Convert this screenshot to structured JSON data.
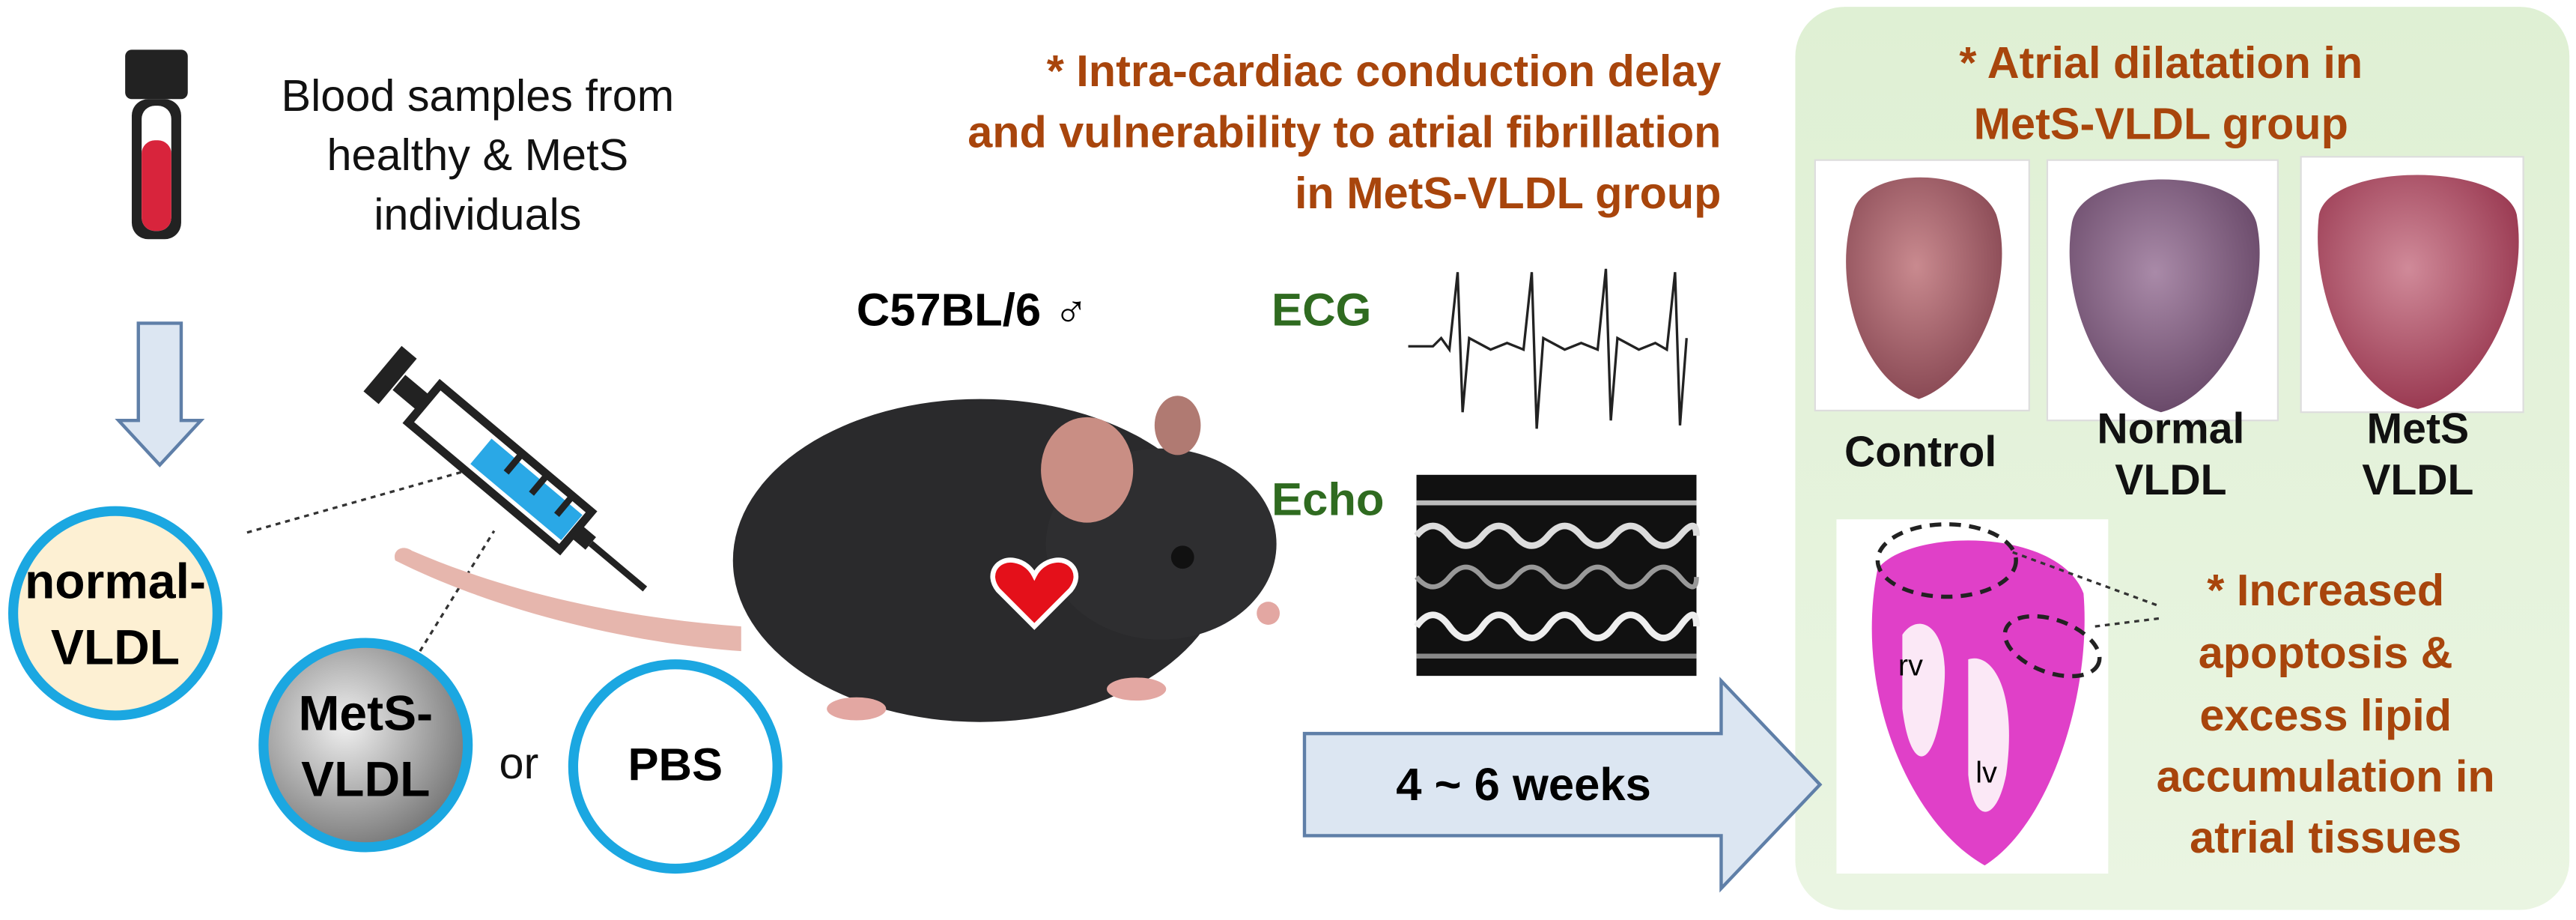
{
  "samples": {
    "lines": [
      "Blood samples from",
      "healthy & MetS",
      "individuals"
    ]
  },
  "groups": [
    {
      "lines": [
        "normal-",
        "VLDL"
      ]
    },
    {
      "lines": [
        "MetS-",
        "VLDL"
      ]
    },
    {
      "lines": [
        "PBS"
      ]
    }
  ],
  "connector": "or",
  "mouse": {
    "strain": "C57BL/6 ♂"
  },
  "measurements": [
    "ECG",
    "Echo"
  ],
  "duration": "4 ~ 6 weeks",
  "findings": {
    "conduction": [
      "* Intra-cardiac conduction delay",
      "and vulnerability to atrial fibrillation",
      "in MetS-VLDL group"
    ],
    "dilatation": [
      "* Atrial dilatation in",
      "MetS-VLDL group"
    ],
    "hearts": [
      {
        "lines": [
          "Control"
        ]
      },
      {
        "lines": [
          "Normal",
          "VLDL"
        ]
      },
      {
        "lines": [
          "MetS",
          "VLDL"
        ]
      }
    ],
    "apoptosis": [
      "* Increased",
      "apoptosis &",
      "excess lipid",
      "accumulation in",
      "atrial tissues"
    ]
  },
  "histology": {
    "rv": "rv",
    "lv": "lv"
  }
}
